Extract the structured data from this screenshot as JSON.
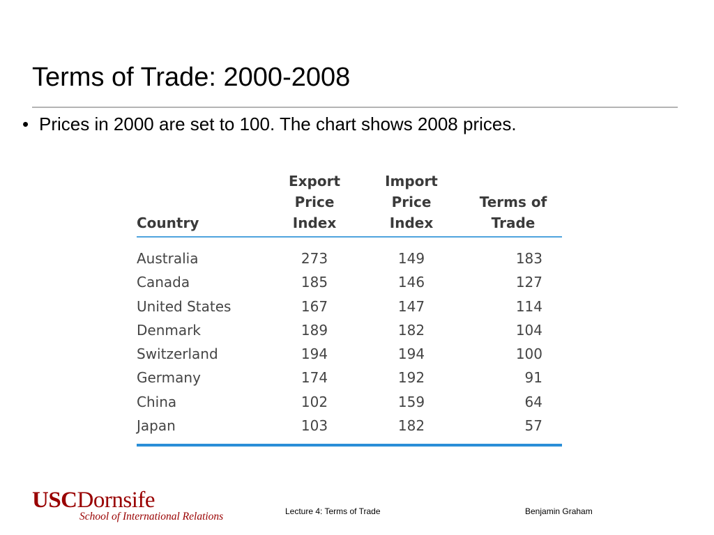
{
  "slide": {
    "title": "Terms of Trade: 2000-2008",
    "bullet_marker": "•",
    "bullet": "Prices in 2000 are set to 100.  The chart shows 2008 prices."
  },
  "table": {
    "headers": {
      "country": "Country",
      "export": [
        "Export",
        "Price",
        "Index"
      ],
      "import": [
        "Import",
        "Price",
        "Index"
      ],
      "tot": [
        "Terms of",
        "Trade"
      ]
    },
    "rows": [
      {
        "country": "Australia",
        "export": "273",
        "import": "149",
        "tot": "183"
      },
      {
        "country": "Canada",
        "export": "185",
        "import": "146",
        "tot": "127"
      },
      {
        "country": "United States",
        "export": "167",
        "import": "147",
        "tot": "114"
      },
      {
        "country": "Denmark",
        "export": "189",
        "import": "182",
        "tot": "104"
      },
      {
        "country": "Switzerland",
        "export": "194",
        "import": "194",
        "tot": "100"
      },
      {
        "country": "Germany",
        "export": "174",
        "import": "192",
        "tot": "91"
      },
      {
        "country": "China",
        "export": "102",
        "import": "159",
        "tot": "64"
      },
      {
        "country": "Japan",
        "export": "103",
        "import": "182",
        "tot": "57"
      }
    ]
  },
  "footer": {
    "logo_usc": "USC",
    "logo_dornsife": "Dornsife",
    "logo_school": "School of International Relations",
    "lecture": "Lecture 4: Terms of Trade",
    "author": "Benjamin Graham"
  },
  "colors": {
    "table_rule": "#2b8fd8",
    "logo": "#990000"
  }
}
